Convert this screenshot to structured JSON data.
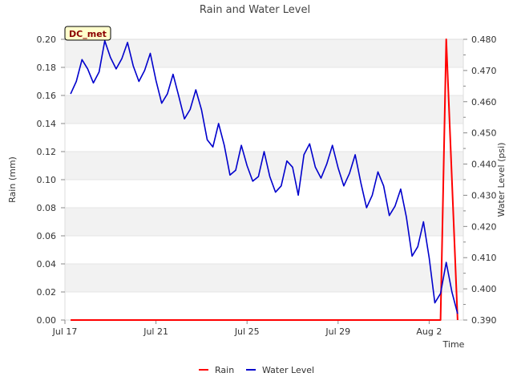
{
  "colors": {
    "rain": "#ff0000",
    "water_level": "#0000cc",
    "band": "#f2f2f2",
    "badge_fill": "#ffffcc"
  },
  "chart_data": {
    "type": "line",
    "title": "Rain and Water Level",
    "xlabel": "Time",
    "ylabel_left": "Rain (mm)",
    "ylabel_right": "Water Level (psi)",
    "badge": "DC_met",
    "x_range": [
      "2023-07-17",
      "2023-08-03 12:00"
    ],
    "x_ticks": [
      "Jul 17",
      "Jul 21",
      "Jul 25",
      "Jul 29",
      "Aug 2"
    ],
    "y_left": {
      "lim": [
        0,
        0.2
      ],
      "ticks": [
        "0.00",
        "0.02",
        "0.04",
        "0.06",
        "0.08",
        "0.10",
        "0.12",
        "0.14",
        "0.16",
        "0.18",
        "0.20"
      ]
    },
    "y_right": {
      "lim": [
        0.39,
        0.48
      ],
      "ticks": [
        "0.390",
        "0.400",
        "0.410",
        "0.420",
        "0.430",
        "0.440",
        "0.450",
        "0.460",
        "0.470",
        "0.480"
      ]
    },
    "grid": "horizontal bands",
    "legend_position": "bottom-center",
    "series": [
      {
        "name": "Rain",
        "axis": "left",
        "x": [
          "2023-07-17 06:00",
          "2023-08-02 12:00",
          "2023-08-02 18:00",
          "2023-08-03 06:00"
        ],
        "y": [
          0,
          0,
          0.2,
          0
        ]
      },
      {
        "name": "Water Level",
        "axis": "right",
        "x": [
          "2023-07-17 06:00",
          "2023-07-17 12:00",
          "2023-07-17 18:00",
          "2023-07-18 00:00",
          "2023-07-18 06:00",
          "2023-07-18 12:00",
          "2023-07-18 18:00",
          "2023-07-19 00:00",
          "2023-07-19 06:00",
          "2023-07-19 12:00",
          "2023-07-19 18:00",
          "2023-07-20 00:00",
          "2023-07-20 06:00",
          "2023-07-20 12:00",
          "2023-07-20 18:00",
          "2023-07-21 00:00",
          "2023-07-21 06:00",
          "2023-07-21 12:00",
          "2023-07-21 18:00",
          "2023-07-22 00:00",
          "2023-07-22 06:00",
          "2023-07-22 12:00",
          "2023-07-22 18:00",
          "2023-07-23 00:00",
          "2023-07-23 06:00",
          "2023-07-23 12:00",
          "2023-07-23 18:00",
          "2023-07-24 00:00",
          "2023-07-24 06:00",
          "2023-07-24 12:00",
          "2023-07-24 18:00",
          "2023-07-25 00:00",
          "2023-07-25 06:00",
          "2023-07-25 12:00",
          "2023-07-25 18:00",
          "2023-07-26 00:00",
          "2023-07-26 06:00",
          "2023-07-26 12:00",
          "2023-07-26 18:00",
          "2023-07-27 00:00",
          "2023-07-27 06:00",
          "2023-07-27 12:00",
          "2023-07-27 18:00",
          "2023-07-28 00:00",
          "2023-07-28 06:00",
          "2023-07-28 12:00",
          "2023-07-28 18:00",
          "2023-07-29 00:00",
          "2023-07-29 06:00",
          "2023-07-29 12:00",
          "2023-07-29 18:00",
          "2023-07-30 00:00",
          "2023-07-30 06:00",
          "2023-07-30 12:00",
          "2023-07-30 18:00",
          "2023-07-31 00:00",
          "2023-07-31 06:00",
          "2023-07-31 12:00",
          "2023-07-31 18:00",
          "2023-08-01 00:00",
          "2023-08-01 06:00",
          "2023-08-01 12:00",
          "2023-08-01 18:00",
          "2023-08-02 00:00",
          "2023-08-02 06:00",
          "2023-08-02 12:00",
          "2023-08-02 18:00",
          "2023-08-03 00:00",
          "2023-08-03 06:00"
        ],
        "y": [
          0.4625,
          0.4665,
          0.4735,
          0.4705,
          0.466,
          0.4695,
          0.4795,
          0.4742,
          0.4705,
          0.4738,
          0.479,
          0.4715,
          0.4665,
          0.47,
          0.4755,
          0.4668,
          0.4595,
          0.4625,
          0.4688,
          0.4618,
          0.4545,
          0.4575,
          0.4638,
          0.4574,
          0.4478,
          0.4455,
          0.453,
          0.446,
          0.4365,
          0.438,
          0.446,
          0.4395,
          0.4345,
          0.436,
          0.444,
          0.436,
          0.431,
          0.433,
          0.441,
          0.439,
          0.43,
          0.443,
          0.4465,
          0.439,
          0.4355,
          0.44,
          0.446,
          0.4388,
          0.433,
          0.437,
          0.443,
          0.434,
          0.426,
          0.43,
          0.4375,
          0.433,
          0.4235,
          0.4265,
          0.432,
          0.423,
          0.4105,
          0.4135,
          0.4215,
          0.41,
          0.3955,
          0.3985,
          0.4085,
          0.399,
          0.392
        ]
      }
    ]
  },
  "legend": [
    {
      "label": "Rain",
      "color_key": "rain"
    },
    {
      "label": "Water Level",
      "color_key": "water_level"
    }
  ]
}
